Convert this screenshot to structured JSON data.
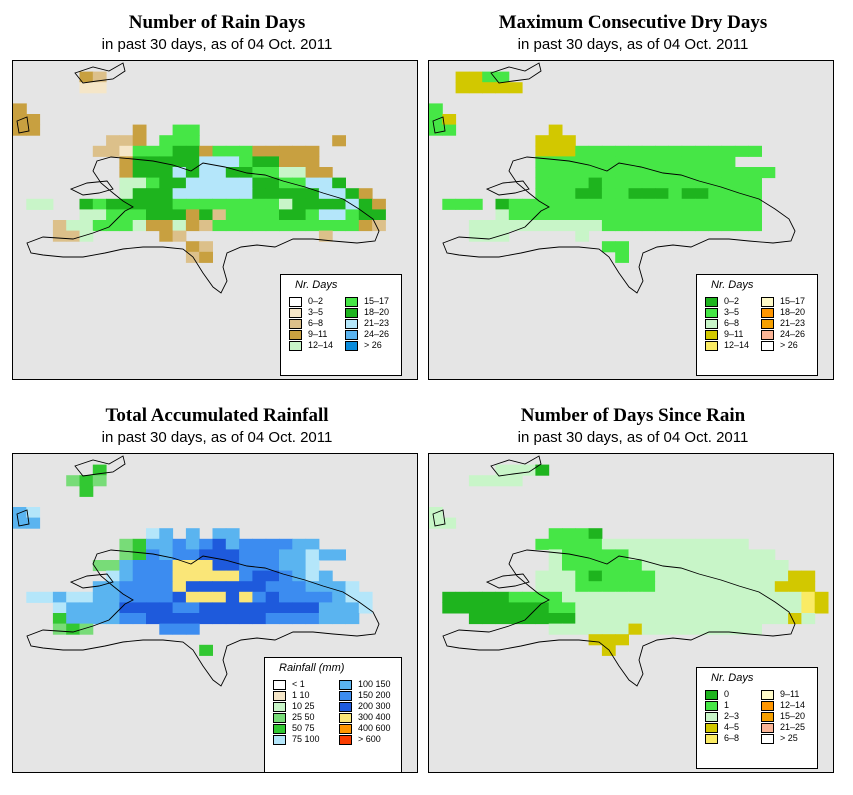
{
  "panels": [
    {
      "title": "Number of Rain Days",
      "subtitle": "in past 30 days, as of  04 Oct. 2011",
      "legend": {
        "title": "Nr. Days",
        "items": [
          {
            "label": "0–2",
            "color": "#ffffff"
          },
          {
            "label": "3–5",
            "color": "#f5e6c8"
          },
          {
            "label": "6–8",
            "color": "#dcc08a"
          },
          {
            "label": "9–11",
            "color": "#c8a040"
          },
          {
            "label": "12–14",
            "color": "#c8f5c8"
          },
          {
            "label": "15–17",
            "color": "#46e646"
          },
          {
            "label": "18–20",
            "color": "#1eb41e"
          },
          {
            "label": "21–23",
            "color": "#b4e6fa"
          },
          {
            "label": "24–26",
            "color": "#5ab4f0"
          },
          {
            "label": "> 26",
            "color": "#0a8cdc"
          }
        ]
      },
      "grid": {
        "colors": {
          "a": "#f5e6c8",
          "b": "#dcc08a",
          "c": "#c8a040",
          "d": "#c8f5c8",
          "e": "#46e646",
          "f": "#1eb41e",
          "g": "#b4e6fa"
        },
        "rows": [
          "..........................................",
          ".....cb...................................",
          ".....aa...................................",
          "..........................................",
          "c.........................................",
          "cc........................................",
          "cc.......c..ee............................",
          ".......bbc.eee..........c.................",
          "......bbaeeeffceeeccccc...................",
          "........cfffffgggeffccc...................",
          "........cfffgfggffeeddcc..................",
          "........ddeffgggggffeeggf.................",
          "........dfffggggggfffffggfc...............",
          ".dd..fefffffeeeeeeeedffffgfc..............",
          ".....ddeeefffcfbeeeeffeggeff..............",
          "...bddeeedccdcbeeeeeeeeeeecb..............",
          "...bbd.....cb..........b..................",
          ".............cb...........................",
          ".............bc...........................",
          "..........................................",
          "..........................................",
          "..........................................",
          "..........................................",
          "..........................................",
          "..........................................",
          "..........................................",
          "..........................................",
          "..........................................",
          "..........................................",
          ".........................................."
        ]
      }
    },
    {
      "title": "Maximum Consecutive Dry Days",
      "subtitle": "in past 30 days, as of  04 Oct. 2011",
      "legend": {
        "title": "Nr. Days",
        "items": [
          {
            "label": "0–2",
            "color": "#1eb41e"
          },
          {
            "label": "3–5",
            "color": "#46e646"
          },
          {
            "label": "6–8",
            "color": "#c8f5c8"
          },
          {
            "label": "9–11",
            "color": "#d2c800"
          },
          {
            "label": "12–14",
            "color": "#faeb64"
          },
          {
            "label": "15–17",
            "color": "#fffac8"
          },
          {
            "label": "18–20",
            "color": "#ff9600"
          },
          {
            "label": "21–23",
            "color": "#f5a000"
          },
          {
            "label": "24–26",
            "color": "#fab496"
          },
          {
            "label": "> 26",
            "color": "#ffffff"
          }
        ]
      },
      "grid": {
        "colors": {
          "d": "#d2c800",
          "e": "#46e646",
          "f": "#1eb41e",
          "k": "#c8f5c8",
          "y": "#faeb64"
        },
        "rows": [
          "..........................................",
          "..ddee....................................",
          "..ddddd...................................",
          "..........................................",
          "e.........................................",
          "ed........................................",
          "ee.......d................................",
          "........ddd...............................",
          "........dddeeeeeeeeeeeeee.................",
          "........eeeeeeeeeeeeeee...................",
          "........eeeeeeeeeeeeeeeeee................",
          "........eeeefeeeeeeeeeeee.................",
          "........eeeffeefffeffeeee.................",
          ".eee.feeeeeeeeeeeeeeeeeee.................",
          ".....keeeeeeeeeeeeeeeeeee.................",
          "...kkkkkkkkkkeeeeeeeeeeee.................",
          "...kkk.....k..............................",
          ".............ee...........................",
          "..............e...........................",
          "..........................................",
          "..........................................",
          "..........................................",
          "..........................................",
          "..........................................",
          "..........................................",
          "..........................................",
          "..........................................",
          "..........................................",
          "..........................................",
          ".........................................."
        ]
      }
    },
    {
      "title": "Total Accumulated Rainfall",
      "subtitle": "in past 30 days, as of  04 Oct. 2011",
      "legend": {
        "title": "Rainfall (mm)",
        "items": [
          {
            "label": "< 1",
            "color": "#ffffff"
          },
          {
            "label": "1   10",
            "color": "#f5e6c8"
          },
          {
            "label": "10   25",
            "color": "#c8f5c8"
          },
          {
            "label": "25   50",
            "color": "#78dc78"
          },
          {
            "label": "50   75",
            "color": "#32c832"
          },
          {
            "label": "75   100",
            "color": "#b4e6fa"
          },
          {
            "label": "100   150",
            "color": "#5ab4f0"
          },
          {
            "label": "150   200",
            "color": "#3c8cf0"
          },
          {
            "label": "200   300",
            "color": "#1e5adc"
          },
          {
            "label": "300   400",
            "color": "#fae678"
          },
          {
            "label": "400   600",
            "color": "#ff9600"
          },
          {
            "label": "> 600",
            "color": "#fa3c00"
          }
        ]
      },
      "grid": {
        "colors": {
          "g": "#32c832",
          "m": "#78dc78",
          "s": "#b4e6fa",
          "t": "#5ab4f0",
          "u": "#3c8cf0",
          "v": "#1e5adc",
          "y": "#fae678"
        },
        "rows": [
          "..........................................",
          "......g...................................",
          "....mgm...................................",
          ".....g....................................",
          "..........................................",
          "ts........................................",
          "tt........................................",
          "..........st.t.tt.........................",
          "........mgttutuvtuuuutt...................",
          "........mgutuuvvvuuuttstt.................",
          "......mmtuuuyyyvvuuutts...................",
          ".......stuuuyyyyyuvvutst..................",
          "......ttuuuuyvvvvvvuuuttts................",
          ".sstssttuuuuvyyyvyuvuuuutss...............",
          "...sttttvvvvuuvvvvvvvvvttts...............",
          "...gttttuuvvvvvvvvvuuuuttt................",
          "...mgm.....uuu............................",
          ".........................................",
          "..............g...........................",
          "..........................................",
          "..........................................",
          "..........................................",
          "..........................................",
          "..........................................",
          "..........................................",
          "..........................................",
          "..........................................",
          "..........................................",
          "..........................................",
          ".........................................."
        ]
      }
    },
    {
      "title": "Number of Days Since Rain",
      "subtitle": "in past 30 days, as of  04 Oct. 2011",
      "legend": {
        "title": "Nr. Days",
        "items": [
          {
            "label": "0",
            "color": "#1eb41e"
          },
          {
            "label": "1",
            "color": "#46e646"
          },
          {
            "label": "2–3",
            "color": "#c8f5c8"
          },
          {
            "label": "4–5",
            "color": "#d2c800"
          },
          {
            "label": "6–8",
            "color": "#faeb64"
          },
          {
            "label": "9–11",
            "color": "#fffac8"
          },
          {
            "label": "12–14",
            "color": "#ff9600"
          },
          {
            "label": "15–20",
            "color": "#f5a000"
          },
          {
            "label": "21–25",
            "color": "#fab496"
          },
          {
            "label": "> 25",
            "color": "#ffffff"
          }
        ]
      },
      "grid": {
        "colors": {
          "d": "#d2c800",
          "e": "#46e646",
          "f": "#1eb41e",
          "k": "#c8f5c8",
          "y": "#faeb64"
        },
        "rows": [
          "..........................................",
          ".....kkkf.................................",
          "...kkkk...................................",
          "..........................................",
          "..........................................",
          "k.........................................",
          "kk........................................",
          ".........eeef.............................",
          "........eeeeekkkkkkkkkkk..................",
          ".........keeeeekkkkkkkkkkk................",
          ".........keeeeeekkkkkkkkkkk...............",
          "........kkkefeeeekkkkkkkkkkdd.............",
          "........kkkeeeeeekkkkkkkkkddd.............",
          ".fffffeeeekkkkkkkkkkkkkkkkkkyd............",
          ".ffffffffeekkkkkkkkkkkkkkkkkyd............",
          "...ffffffffkkkkkkkkkkkkkkkkdk.............",
          ".........kkkkkkdkkkkkkkkk.................",
          "............ddd...........................",
          ".............d............................",
          "..........................................",
          "..........................................",
          "..........................................",
          "..........................................",
          "..........................................",
          "..........................................",
          "..........................................",
          "..........................................",
          "..........................................",
          "..........................................",
          ".........................................."
        ]
      }
    }
  ]
}
